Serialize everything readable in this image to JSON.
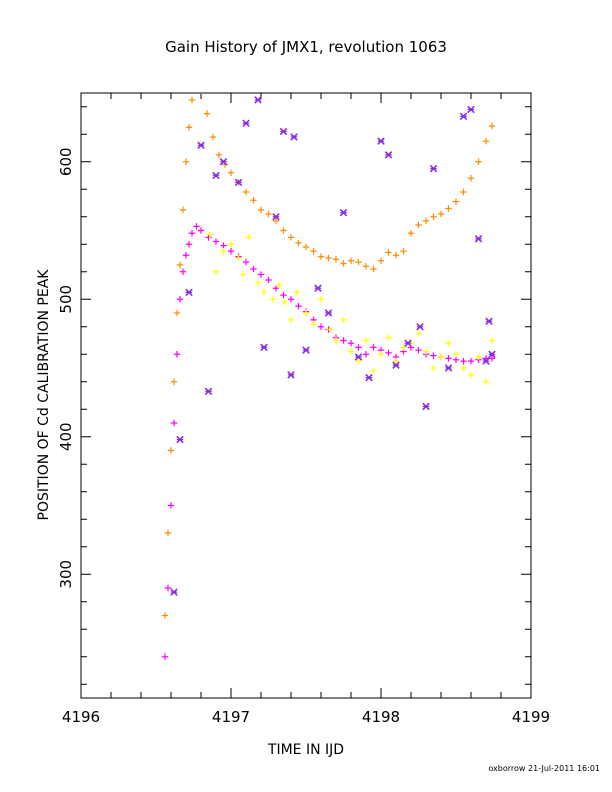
{
  "chart_data": {
    "type": "scatter",
    "title": "Gain History of JMX1, revolution 1063",
    "xlabel": "TIME IN IJD",
    "ylabel": "POSITION OF Cd CALIBRATION PEAK",
    "footer": "oxborrow 21-Jul-2011 16:01",
    "xlim": [
      4196,
      4199
    ],
    "ylim": [
      210,
      650
    ],
    "x_ticks": [
      4196,
      4197,
      4198,
      4199
    ],
    "x_tick_labels": [
      "4196",
      "4197",
      "4198",
      "4199"
    ],
    "y_ticks": [
      300,
      400,
      500,
      600
    ],
    "y_tick_labels": [
      "300",
      "400",
      "500",
      "600"
    ],
    "grid": false,
    "legend": "none",
    "series": [
      {
        "color": "#ff8c00",
        "marker": "+",
        "points": [
          [
            4196.56,
            270
          ],
          [
            4196.58,
            330
          ],
          [
            4196.6,
            390
          ],
          [
            4196.62,
            440
          ],
          [
            4196.64,
            490
          ],
          [
            4196.66,
            525
          ],
          [
            4196.68,
            565
          ],
          [
            4196.7,
            600
          ],
          [
            4196.72,
            625
          ],
          [
            4196.74,
            645
          ],
          [
            4196.76,
            660
          ],
          [
            4196.8,
            652
          ],
          [
            4196.84,
            635
          ],
          [
            4196.88,
            618
          ],
          [
            4196.92,
            605
          ],
          [
            4196.96,
            598
          ],
          [
            4197.0,
            592
          ],
          [
            4197.05,
            585
          ],
          [
            4197.1,
            578
          ],
          [
            4197.15,
            572
          ],
          [
            4197.2,
            565
          ],
          [
            4197.25,
            562
          ],
          [
            4197.3,
            557
          ],
          [
            4197.35,
            550
          ],
          [
            4197.4,
            545
          ],
          [
            4197.45,
            541
          ],
          [
            4197.5,
            538
          ],
          [
            4197.55,
            535
          ],
          [
            4197.6,
            531
          ],
          [
            4197.65,
            530
          ],
          [
            4197.7,
            529
          ],
          [
            4197.75,
            526
          ],
          [
            4197.8,
            528
          ],
          [
            4197.85,
            527
          ],
          [
            4197.9,
            524
          ],
          [
            4197.95,
            522
          ],
          [
            4198.0,
            528
          ],
          [
            4198.05,
            534
          ],
          [
            4198.1,
            532
          ],
          [
            4198.15,
            535
          ],
          [
            4198.2,
            548
          ],
          [
            4198.25,
            554
          ],
          [
            4198.3,
            557
          ],
          [
            4198.35,
            560
          ],
          [
            4198.4,
            562
          ],
          [
            4198.45,
            566
          ],
          [
            4198.5,
            571
          ],
          [
            4198.55,
            578
          ],
          [
            4198.6,
            588
          ],
          [
            4198.65,
            600
          ],
          [
            4198.7,
            615
          ],
          [
            4198.74,
            626
          ]
        ]
      },
      {
        "color": "#ff00ff",
        "marker": "+",
        "points": [
          [
            4196.56,
            240
          ],
          [
            4196.58,
            290
          ],
          [
            4196.6,
            350
          ],
          [
            4196.62,
            410
          ],
          [
            4196.64,
            460
          ],
          [
            4196.66,
            500
          ],
          [
            4196.68,
            520
          ],
          [
            4196.7,
            532
          ],
          [
            4196.72,
            540
          ],
          [
            4196.74,
            548
          ],
          [
            4196.77,
            553
          ],
          [
            4196.8,
            550
          ],
          [
            4196.85,
            545
          ],
          [
            4196.9,
            542
          ],
          [
            4196.95,
            539
          ],
          [
            4197.0,
            535
          ],
          [
            4197.05,
            531
          ],
          [
            4197.1,
            527
          ],
          [
            4197.15,
            522
          ],
          [
            4197.2,
            518
          ],
          [
            4197.25,
            514
          ],
          [
            4197.3,
            508
          ],
          [
            4197.35,
            503
          ],
          [
            4197.4,
            500
          ],
          [
            4197.45,
            495
          ],
          [
            4197.5,
            491
          ],
          [
            4197.55,
            485
          ],
          [
            4197.6,
            480
          ],
          [
            4197.65,
            478
          ],
          [
            4197.7,
            472
          ],
          [
            4197.75,
            470
          ],
          [
            4197.8,
            468
          ],
          [
            4197.85,
            465
          ],
          [
            4197.9,
            460
          ],
          [
            4197.95,
            465
          ],
          [
            4198.0,
            463
          ],
          [
            4198.05,
            461
          ],
          [
            4198.1,
            458
          ],
          [
            4198.15,
            462
          ],
          [
            4198.2,
            465
          ],
          [
            4198.25,
            463
          ],
          [
            4198.3,
            460
          ],
          [
            4198.35,
            459
          ],
          [
            4198.4,
            458
          ],
          [
            4198.45,
            457
          ],
          [
            4198.5,
            456
          ],
          [
            4198.55,
            455
          ],
          [
            4198.6,
            455
          ],
          [
            4198.65,
            456
          ],
          [
            4198.7,
            457
          ],
          [
            4198.74,
            457
          ]
        ]
      },
      {
        "color": "#ffff00",
        "marker": "+",
        "points": [
          [
            4196.86,
            547
          ],
          [
            4196.9,
            520
          ],
          [
            4196.95,
            535
          ],
          [
            4197.0,
            540
          ],
          [
            4197.05,
            530
          ],
          [
            4197.08,
            518
          ],
          [
            4197.12,
            545
          ],
          [
            4197.18,
            512
          ],
          [
            4197.22,
            505
          ],
          [
            4197.28,
            500
          ],
          [
            4197.32,
            510
          ],
          [
            4197.36,
            498
          ],
          [
            4197.4,
            485
          ],
          [
            4197.44,
            505
          ],
          [
            4197.5,
            490
          ],
          [
            4197.55,
            482
          ],
          [
            4197.6,
            500
          ],
          [
            4197.66,
            478
          ],
          [
            4197.7,
            470
          ],
          [
            4197.75,
            485
          ],
          [
            4197.8,
            462
          ],
          [
            4197.85,
            455
          ],
          [
            4197.9,
            470
          ],
          [
            4197.95,
            448
          ],
          [
            4198.0,
            460
          ],
          [
            4198.05,
            472
          ],
          [
            4198.1,
            455
          ],
          [
            4198.15,
            465
          ],
          [
            4198.2,
            468
          ],
          [
            4198.25,
            475
          ],
          [
            4198.3,
            462
          ],
          [
            4198.35,
            450
          ],
          [
            4198.4,
            458
          ],
          [
            4198.45,
            468
          ],
          [
            4198.5,
            460
          ],
          [
            4198.55,
            450
          ],
          [
            4198.6,
            445
          ],
          [
            4198.65,
            458
          ],
          [
            4198.7,
            440
          ],
          [
            4198.74,
            470
          ]
        ]
      },
      {
        "color": "#8a2be2",
        "marker": "x",
        "points": [
          [
            4196.62,
            287
          ],
          [
            4196.66,
            398
          ],
          [
            4196.72,
            505
          ],
          [
            4196.8,
            612
          ],
          [
            4196.85,
            433
          ],
          [
            4196.9,
            590
          ],
          [
            4196.95,
            600
          ],
          [
            4197.05,
            585
          ],
          [
            4197.1,
            628
          ],
          [
            4197.18,
            645
          ],
          [
            4197.22,
            465
          ],
          [
            4197.3,
            560
          ],
          [
            4197.35,
            622
          ],
          [
            4197.4,
            445
          ],
          [
            4197.42,
            618
          ],
          [
            4197.5,
            463
          ],
          [
            4197.58,
            508
          ],
          [
            4197.65,
            490
          ],
          [
            4197.75,
            563
          ],
          [
            4197.85,
            458
          ],
          [
            4197.92,
            443
          ],
          [
            4198.0,
            615
          ],
          [
            4198.05,
            605
          ],
          [
            4198.1,
            452
          ],
          [
            4198.18,
            468
          ],
          [
            4198.26,
            480
          ],
          [
            4198.3,
            422
          ],
          [
            4198.35,
            595
          ],
          [
            4198.45,
            450
          ],
          [
            4198.55,
            633
          ],
          [
            4198.6,
            638
          ],
          [
            4198.65,
            544
          ],
          [
            4198.7,
            455
          ],
          [
            4198.72,
            484
          ],
          [
            4198.74,
            460
          ]
        ]
      }
    ]
  }
}
